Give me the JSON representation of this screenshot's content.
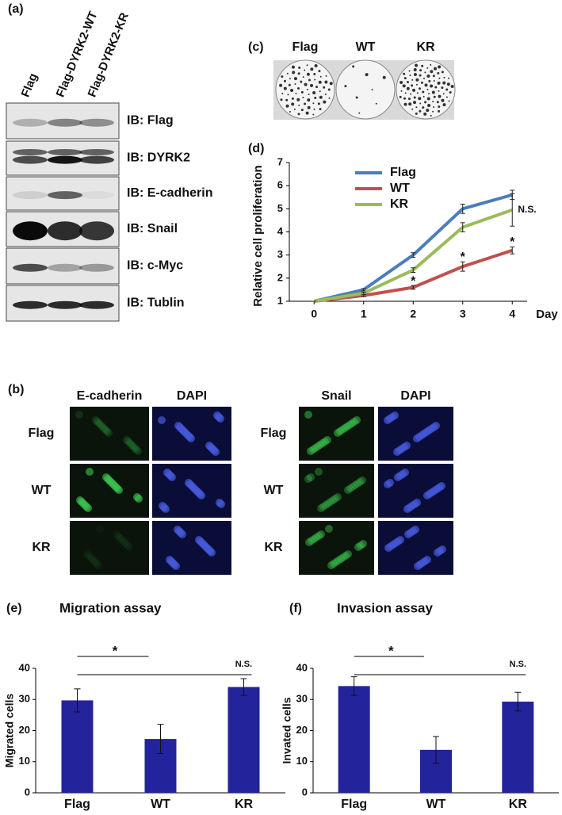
{
  "figure": {
    "panel_labels": [
      "(a)",
      "(b)",
      "(c)",
      "(d)",
      "(e)",
      "(f)"
    ],
    "blot": {
      "lanes": [
        "Flag",
        "Flag-DYRK2-WT",
        "Flag-DYRK2-KR"
      ],
      "bands": [
        "IB: Flag",
        "IB: DYRK2",
        "IB: E-cadherin",
        "IB: Snail",
        "IB: c-Myc",
        "IB: Tublin"
      ]
    },
    "colonies": {
      "labels": [
        "Flag",
        "WT",
        "KR"
      ]
    },
    "if_images": {
      "left_headers": [
        "E-cadherin",
        "DAPI"
      ],
      "right_headers": [
        "Snail",
        "DAPI"
      ],
      "left_rows": [
        "Flag",
        "WT",
        "KR"
      ],
      "right_rows": [
        "Flag",
        "WT",
        "KR"
      ]
    }
  },
  "chart_data": [
    {
      "type": "line",
      "x_label": "Day",
      "y_label": "Relative cell proliferation",
      "x": [
        0,
        1,
        2,
        3,
        4
      ],
      "xlim": [
        -0.5,
        4.3
      ],
      "xticks": [
        0,
        1,
        2,
        3,
        4
      ],
      "ylim": [
        1,
        7
      ],
      "yticks": [
        1,
        2,
        3,
        4,
        5,
        6,
        7
      ],
      "series": [
        {
          "name": "Flag",
          "color": "#4a7ebb",
          "values": [
            1,
            1.5,
            3.0,
            5.0,
            5.6
          ],
          "errors": [
            0,
            0.05,
            0.1,
            0.2,
            0.2
          ]
        },
        {
          "name": "WT",
          "color": "#c0504d",
          "values": [
            1,
            1.25,
            1.6,
            2.5,
            3.2
          ],
          "errors": [
            0,
            0.05,
            0.08,
            0.2,
            0.15
          ]
        },
        {
          "name": "KR",
          "color": "#9bbb59",
          "values": [
            1,
            1.35,
            2.35,
            4.2,
            4.95
          ],
          "errors": [
            0,
            0.05,
            0.1,
            0.2,
            0.7
          ]
        }
      ],
      "annotations": [
        {
          "text": "*",
          "x": 2,
          "y": 1.85
        },
        {
          "text": "*",
          "x": 3,
          "y": 2.9
        },
        {
          "text": "*",
          "x": 4,
          "y": 3.55
        },
        {
          "text": "N.S.",
          "x": 4.3,
          "y": 4.95
        }
      ]
    },
    {
      "type": "bar",
      "title": "Migration assay",
      "y_label": "Migrated cells",
      "categories": [
        "Flag",
        "WT",
        "KR"
      ],
      "values": [
        29.7,
        17.3,
        34
      ],
      "errors": [
        3.7,
        4.7,
        2.7
      ],
      "color": "#23239b",
      "ylim": [
        0,
        40
      ],
      "yticks": [
        0,
        10,
        20,
        30,
        40
      ],
      "annotations": [
        "*",
        "N.S."
      ]
    },
    {
      "type": "bar",
      "title": "Invasion assay",
      "y_label": "Invated cells",
      "categories": [
        "Flag",
        "WT",
        "KR"
      ],
      "values": [
        34.3,
        13.8,
        29.3
      ],
      "errors": [
        3,
        4.3,
        3
      ],
      "color": "#23239b",
      "ylim": [
        0,
        40
      ],
      "yticks": [
        0,
        10,
        20,
        30,
        40
      ],
      "annotations": [
        "*",
        "N.S."
      ]
    }
  ]
}
